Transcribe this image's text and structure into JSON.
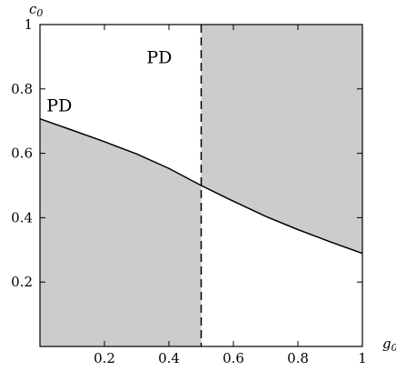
{
  "chart_data": {
    "type": "area",
    "title": "",
    "xlabel": {
      "main": "g",
      "sub": "0"
    },
    "ylabel": {
      "main": "c",
      "sub": "0"
    },
    "xlim": [
      0,
      1
    ],
    "ylim": [
      0,
      1
    ],
    "x_ticks": [
      {
        "value": 0.2,
        "label": "0.2"
      },
      {
        "value": 0.4,
        "label": "0.4"
      },
      {
        "value": 0.6,
        "label": "0.6"
      },
      {
        "value": 0.8,
        "label": "0.8"
      },
      {
        "value": 1.0,
        "label": "1"
      }
    ],
    "y_ticks": [
      {
        "value": 0.2,
        "label": "0.2"
      },
      {
        "value": 0.4,
        "label": "0.4"
      },
      {
        "value": 0.6,
        "label": "0.6"
      },
      {
        "value": 0.8,
        "label": "0.8"
      },
      {
        "value": 1.0,
        "label": "1"
      }
    ],
    "boundary_curve": {
      "x": [
        0,
        0.1,
        0.2,
        0.3,
        0.4,
        0.5,
        0.6,
        0.7,
        0.8,
        0.9,
        1.0
      ],
      "y": [
        0.707,
        0.672,
        0.636,
        0.598,
        0.553,
        0.5,
        0.451,
        0.404,
        0.363,
        0.325,
        0.289
      ]
    },
    "vertical_dashed_line": {
      "x": 0.5
    },
    "shaded_regions": [
      {
        "description": "below curve for g0 < 0.5",
        "x_range": [
          0,
          0.5
        ],
        "side": "below-curve"
      },
      {
        "description": "above curve for g0 > 0.5",
        "x_range": [
          0.5,
          1
        ],
        "side": "above-curve"
      }
    ],
    "annotations": [
      {
        "text": "PD",
        "x": 0.06,
        "y": 0.73
      },
      {
        "text": "PD",
        "x": 0.37,
        "y": 0.88
      }
    ],
    "colors": {
      "shade": "#cccccc",
      "line": "#000000",
      "background": "#ffffff"
    },
    "grid": false
  }
}
